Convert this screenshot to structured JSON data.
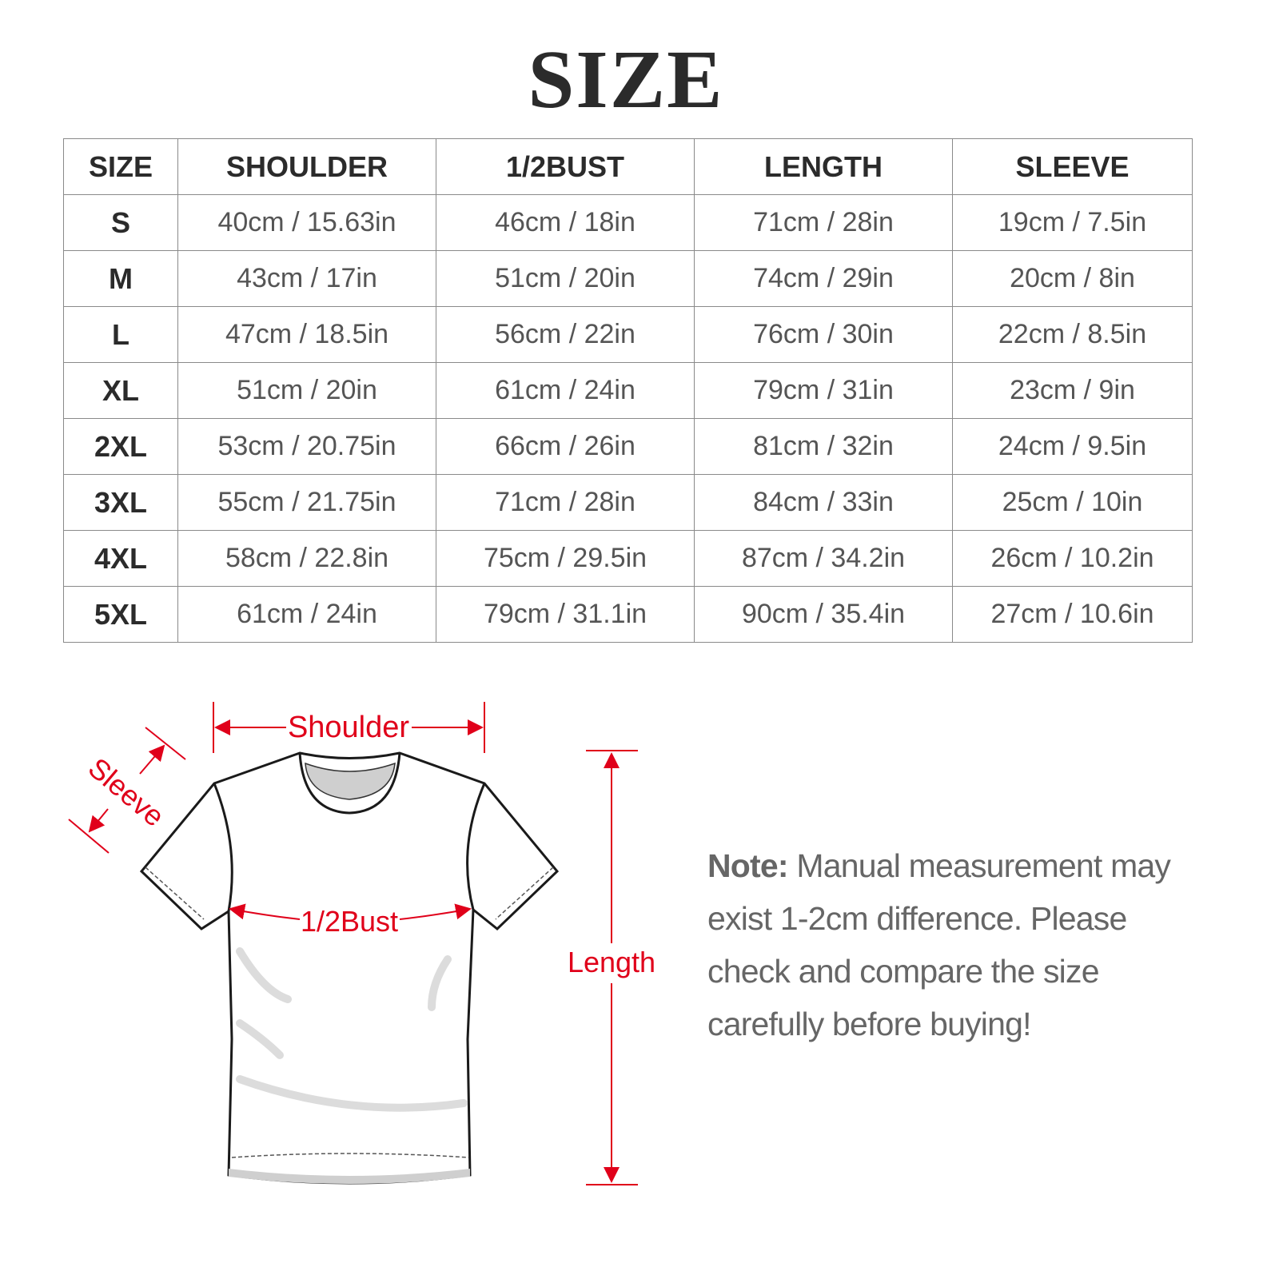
{
  "title": "SIZE",
  "table": {
    "headers": [
      "SIZE",
      "SHOULDER",
      "1/2BUST",
      "LENGTH",
      "SLEEVE"
    ],
    "rows": [
      [
        "S",
        "40cm / 15.63in",
        "46cm / 18in",
        "71cm / 28in",
        "19cm / 7.5in"
      ],
      [
        "M",
        "43cm / 17in",
        "51cm / 20in",
        "74cm / 29in",
        "20cm / 8in"
      ],
      [
        "L",
        "47cm / 18.5in",
        "56cm / 22in",
        "76cm / 30in",
        "22cm / 8.5in"
      ],
      [
        "XL",
        "51cm / 20in",
        "61cm / 24in",
        "79cm / 31in",
        "23cm / 9in"
      ],
      [
        "2XL",
        "53cm / 20.75in",
        "66cm / 26in",
        "81cm / 32in",
        "24cm / 9.5in"
      ],
      [
        "3XL",
        "55cm / 21.75in",
        "71cm / 28in",
        "84cm / 33in",
        "25cm / 10in"
      ],
      [
        "4XL",
        "58cm / 22.8in",
        "75cm / 29.5in",
        "87cm / 34.2in",
        "26cm / 10.2in"
      ],
      [
        "5XL",
        "61cm / 24in",
        "79cm / 31.1in",
        "90cm / 35.4in",
        "27cm / 10.6in"
      ]
    ]
  },
  "diagram": {
    "labels": {
      "shoulder": "Shoulder",
      "sleeve": "Sleeve",
      "bust": "1/2Bust",
      "length": "Length"
    },
    "accent_color": "#e0001a"
  },
  "note": {
    "label": "Note:",
    "text": " Manual measurement may exist 1-2cm difference. Please check and compare the size carefully before buying!"
  }
}
